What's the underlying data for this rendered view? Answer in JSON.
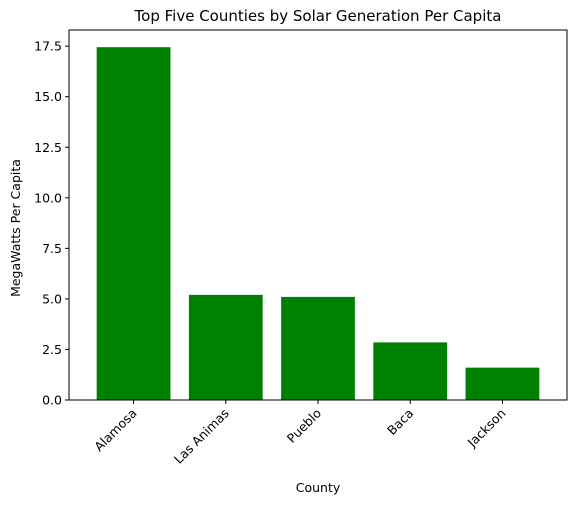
{
  "chart_data": {
    "type": "bar",
    "title": "Top Five Counties by Solar Generation Per Capita",
    "xlabel": "County",
    "ylabel": "MegaWatts Per Capita",
    "categories": [
      "Alamosa",
      "Las Animas",
      "Pueblo",
      "Baca",
      "Jackson"
    ],
    "values": [
      17.45,
      5.2,
      5.1,
      2.85,
      1.6
    ],
    "ylim": [
      0,
      18.3
    ],
    "yticks": [
      0.0,
      2.5,
      5.0,
      7.5,
      10.0,
      12.5,
      15.0,
      17.5
    ],
    "ytick_labels": [
      "0.0",
      "2.5",
      "5.0",
      "7.5",
      "10.0",
      "12.5",
      "15.0",
      "17.5"
    ],
    "bar_color": "#008000",
    "grid": false,
    "legend": "none",
    "xtick_rotation": "45 degrees"
  }
}
